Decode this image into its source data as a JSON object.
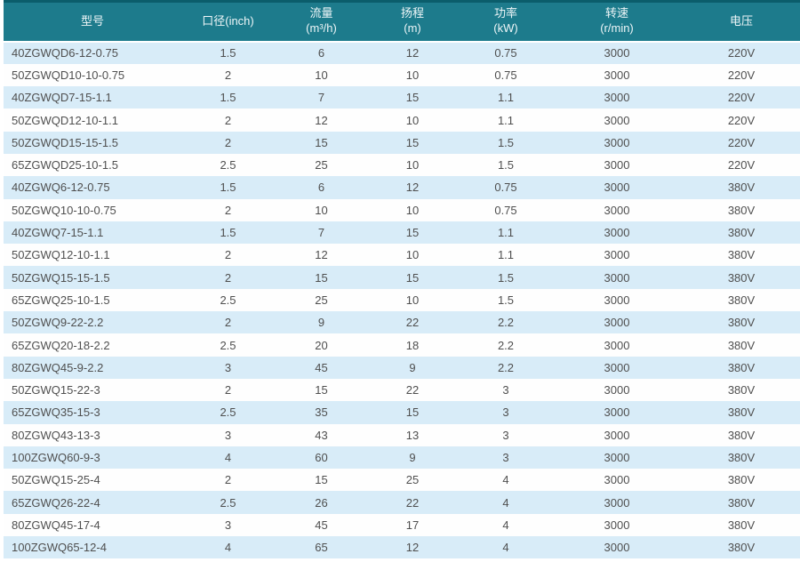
{
  "chart_data": {
    "type": "table",
    "columns": [
      {
        "title": "型号",
        "unit": ""
      },
      {
        "title": "口径(inch)",
        "unit": ""
      },
      {
        "title": "流量",
        "unit": "(m³/h)"
      },
      {
        "title": "扬程",
        "unit": "(m)"
      },
      {
        "title": "功率",
        "unit": "(kW)"
      },
      {
        "title": "转速",
        "unit": "(r/min)"
      },
      {
        "title": "电压",
        "unit": ""
      }
    ],
    "rows": [
      [
        "40ZGWQD6-12-0.75",
        "1.5",
        "6",
        "12",
        "0.75",
        "3000",
        "220V"
      ],
      [
        "50ZGWQD10-10-0.75",
        "2",
        "10",
        "10",
        "0.75",
        "3000",
        "220V"
      ],
      [
        "40ZGWQD7-15-1.1",
        "1.5",
        "7",
        "15",
        "1.1",
        "3000",
        "220V"
      ],
      [
        "50ZGWQD12-10-1.1",
        "2",
        "12",
        "10",
        "1.1",
        "3000",
        "220V"
      ],
      [
        "50ZGWQD15-15-1.5",
        "2",
        "15",
        "15",
        "1.5",
        "3000",
        "220V"
      ],
      [
        "65ZGWQD25-10-1.5",
        "2.5",
        "25",
        "10",
        "1.5",
        "3000",
        "220V"
      ],
      [
        "40ZGWQ6-12-0.75",
        "1.5",
        "6",
        "12",
        "0.75",
        "3000",
        "380V"
      ],
      [
        "50ZGWQ10-10-0.75",
        "2",
        "10",
        "10",
        "0.75",
        "3000",
        "380V"
      ],
      [
        "40ZGWQ7-15-1.1",
        "1.5",
        "7",
        "15",
        "1.1",
        "3000",
        "380V"
      ],
      [
        "50ZGWQ12-10-1.1",
        "2",
        "12",
        "10",
        "1.1",
        "3000",
        "380V"
      ],
      [
        "50ZGWQ15-15-1.5",
        "2",
        "15",
        "15",
        "1.5",
        "3000",
        "380V"
      ],
      [
        "65ZGWQ25-10-1.5",
        "2.5",
        "25",
        "10",
        "1.5",
        "3000",
        "380V"
      ],
      [
        "50ZGWQ9-22-2.2",
        "2",
        "9",
        "22",
        "2.2",
        "3000",
        "380V"
      ],
      [
        "65ZGWQ20-18-2.2",
        "2.5",
        "20",
        "18",
        "2.2",
        "3000",
        "380V"
      ],
      [
        "80ZGWQ45-9-2.2",
        "3",
        "45",
        "9",
        "2.2",
        "3000",
        "380V"
      ],
      [
        "50ZGWQ15-22-3",
        "2",
        "15",
        "22",
        "3",
        "3000",
        "380V"
      ],
      [
        "65ZGWQ35-15-3",
        "2.5",
        "35",
        "15",
        "3",
        "3000",
        "380V"
      ],
      [
        "80ZGWQ43-13-3",
        "3",
        "43",
        "13",
        "3",
        "3000",
        "380V"
      ],
      [
        "100ZGWQ60-9-3",
        "4",
        "60",
        "9",
        "3",
        "3000",
        "380V"
      ],
      [
        "50ZGWQ15-25-4",
        "2",
        "15",
        "25",
        "4",
        "3000",
        "380V"
      ],
      [
        "65ZGWQ26-22-4",
        "2.5",
        "26",
        "22",
        "4",
        "3000",
        "380V"
      ],
      [
        "80ZGWQ45-17-4",
        "3",
        "45",
        "17",
        "4",
        "3000",
        "380V"
      ],
      [
        "100ZGWQ65-12-4",
        "4",
        "65",
        "12",
        "4",
        "3000",
        "380V"
      ]
    ]
  },
  "colors": {
    "header_bg": "#1d7b8c",
    "header_top_border": "#0b5d6b",
    "header_text": "#eef6f8",
    "row_alt_bg": "#d8ecf8",
    "row_bg": "#fefefe",
    "body_text": "#4f4f4f"
  }
}
